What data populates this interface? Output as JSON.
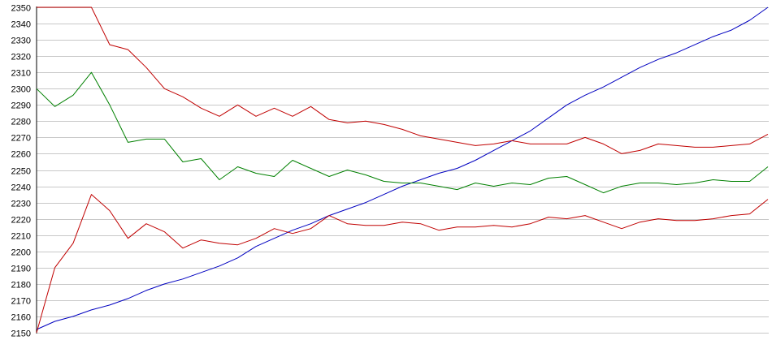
{
  "chart_data": {
    "type": "line",
    "title": "",
    "xlabel": "",
    "ylabel": "",
    "ylim": [
      2150,
      2350
    ],
    "y_ticks": [
      "2150",
      "2160",
      "2170",
      "2180",
      "2190",
      "2200",
      "2210",
      "2220",
      "2230",
      "2240",
      "2250",
      "2260",
      "2270",
      "2280",
      "2290",
      "2300",
      "2310",
      "2320",
      "2330",
      "2340",
      "2350"
    ],
    "grid": true,
    "legend": "none",
    "x": [
      0,
      10,
      20,
      30,
      40,
      50,
      60,
      70,
      80,
      90,
      100,
      110,
      120,
      130,
      140,
      150,
      160,
      170,
      180,
      190,
      200,
      210,
      220,
      230,
      240,
      250,
      260,
      270,
      280,
      290,
      300,
      310,
      320,
      330,
      340,
      350,
      360,
      370,
      380,
      390,
      400
    ],
    "series": [
      {
        "color": "#0000c0",
        "values": [
          2152,
          2157,
          2160,
          2164,
          2167,
          2171,
          2176,
          2180,
          2183,
          2187,
          2191,
          2196,
          2203,
          2208,
          2213,
          2217,
          2222,
          2226,
          2230,
          2235,
          2240,
          2244,
          2248,
          2251,
          2256,
          2262,
          2268,
          2274,
          2282,
          2290,
          2296,
          2301,
          2307,
          2313,
          2318,
          2322,
          2327,
          2332,
          2336,
          2342,
          2350
        ]
      },
      {
        "color": "#c00000",
        "values": [
          2350,
          2350,
          2350,
          2350,
          2327,
          2324,
          2313,
          2300,
          2295,
          2288,
          2283,
          2290,
          2283,
          2288,
          2283,
          2289,
          2281,
          2279,
          2280,
          2278,
          2275,
          2271,
          2269,
          2267,
          2265,
          2266,
          2268,
          2266,
          2266,
          2266,
          2270,
          2266,
          2260,
          2262,
          2266,
          2265,
          2264,
          2264,
          2265,
          2266,
          2272
        ]
      },
      {
        "color": "#008000",
        "values": [
          2300,
          2289,
          2296,
          2310,
          2290,
          2267,
          2269,
          2269,
          2255,
          2257,
          2244,
          2252,
          2248,
          2246,
          2256,
          2251,
          2246,
          2250,
          2247,
          2243,
          2242,
          2242,
          2240,
          2238,
          2242,
          2240,
          2242,
          2241,
          2245,
          2246,
          2241,
          2236,
          2240,
          2242,
          2242,
          2241,
          2242,
          2244,
          2243,
          2243,
          2252
        ]
      },
      {
        "color": "#c00000",
        "values": [
          2150,
          2190,
          2205,
          2235,
          2225,
          2208,
          2217,
          2212,
          2202,
          2207,
          2205,
          2204,
          2208,
          2214,
          2211,
          2214,
          2222,
          2217,
          2216,
          2216,
          2218,
          2217,
          2213,
          2215,
          2215,
          2216,
          2215,
          2217,
          2221,
          2220,
          2222,
          2218,
          2214,
          2218,
          2220,
          2219,
          2219,
          2220,
          2222,
          2223,
          2232
        ]
      }
    ]
  }
}
